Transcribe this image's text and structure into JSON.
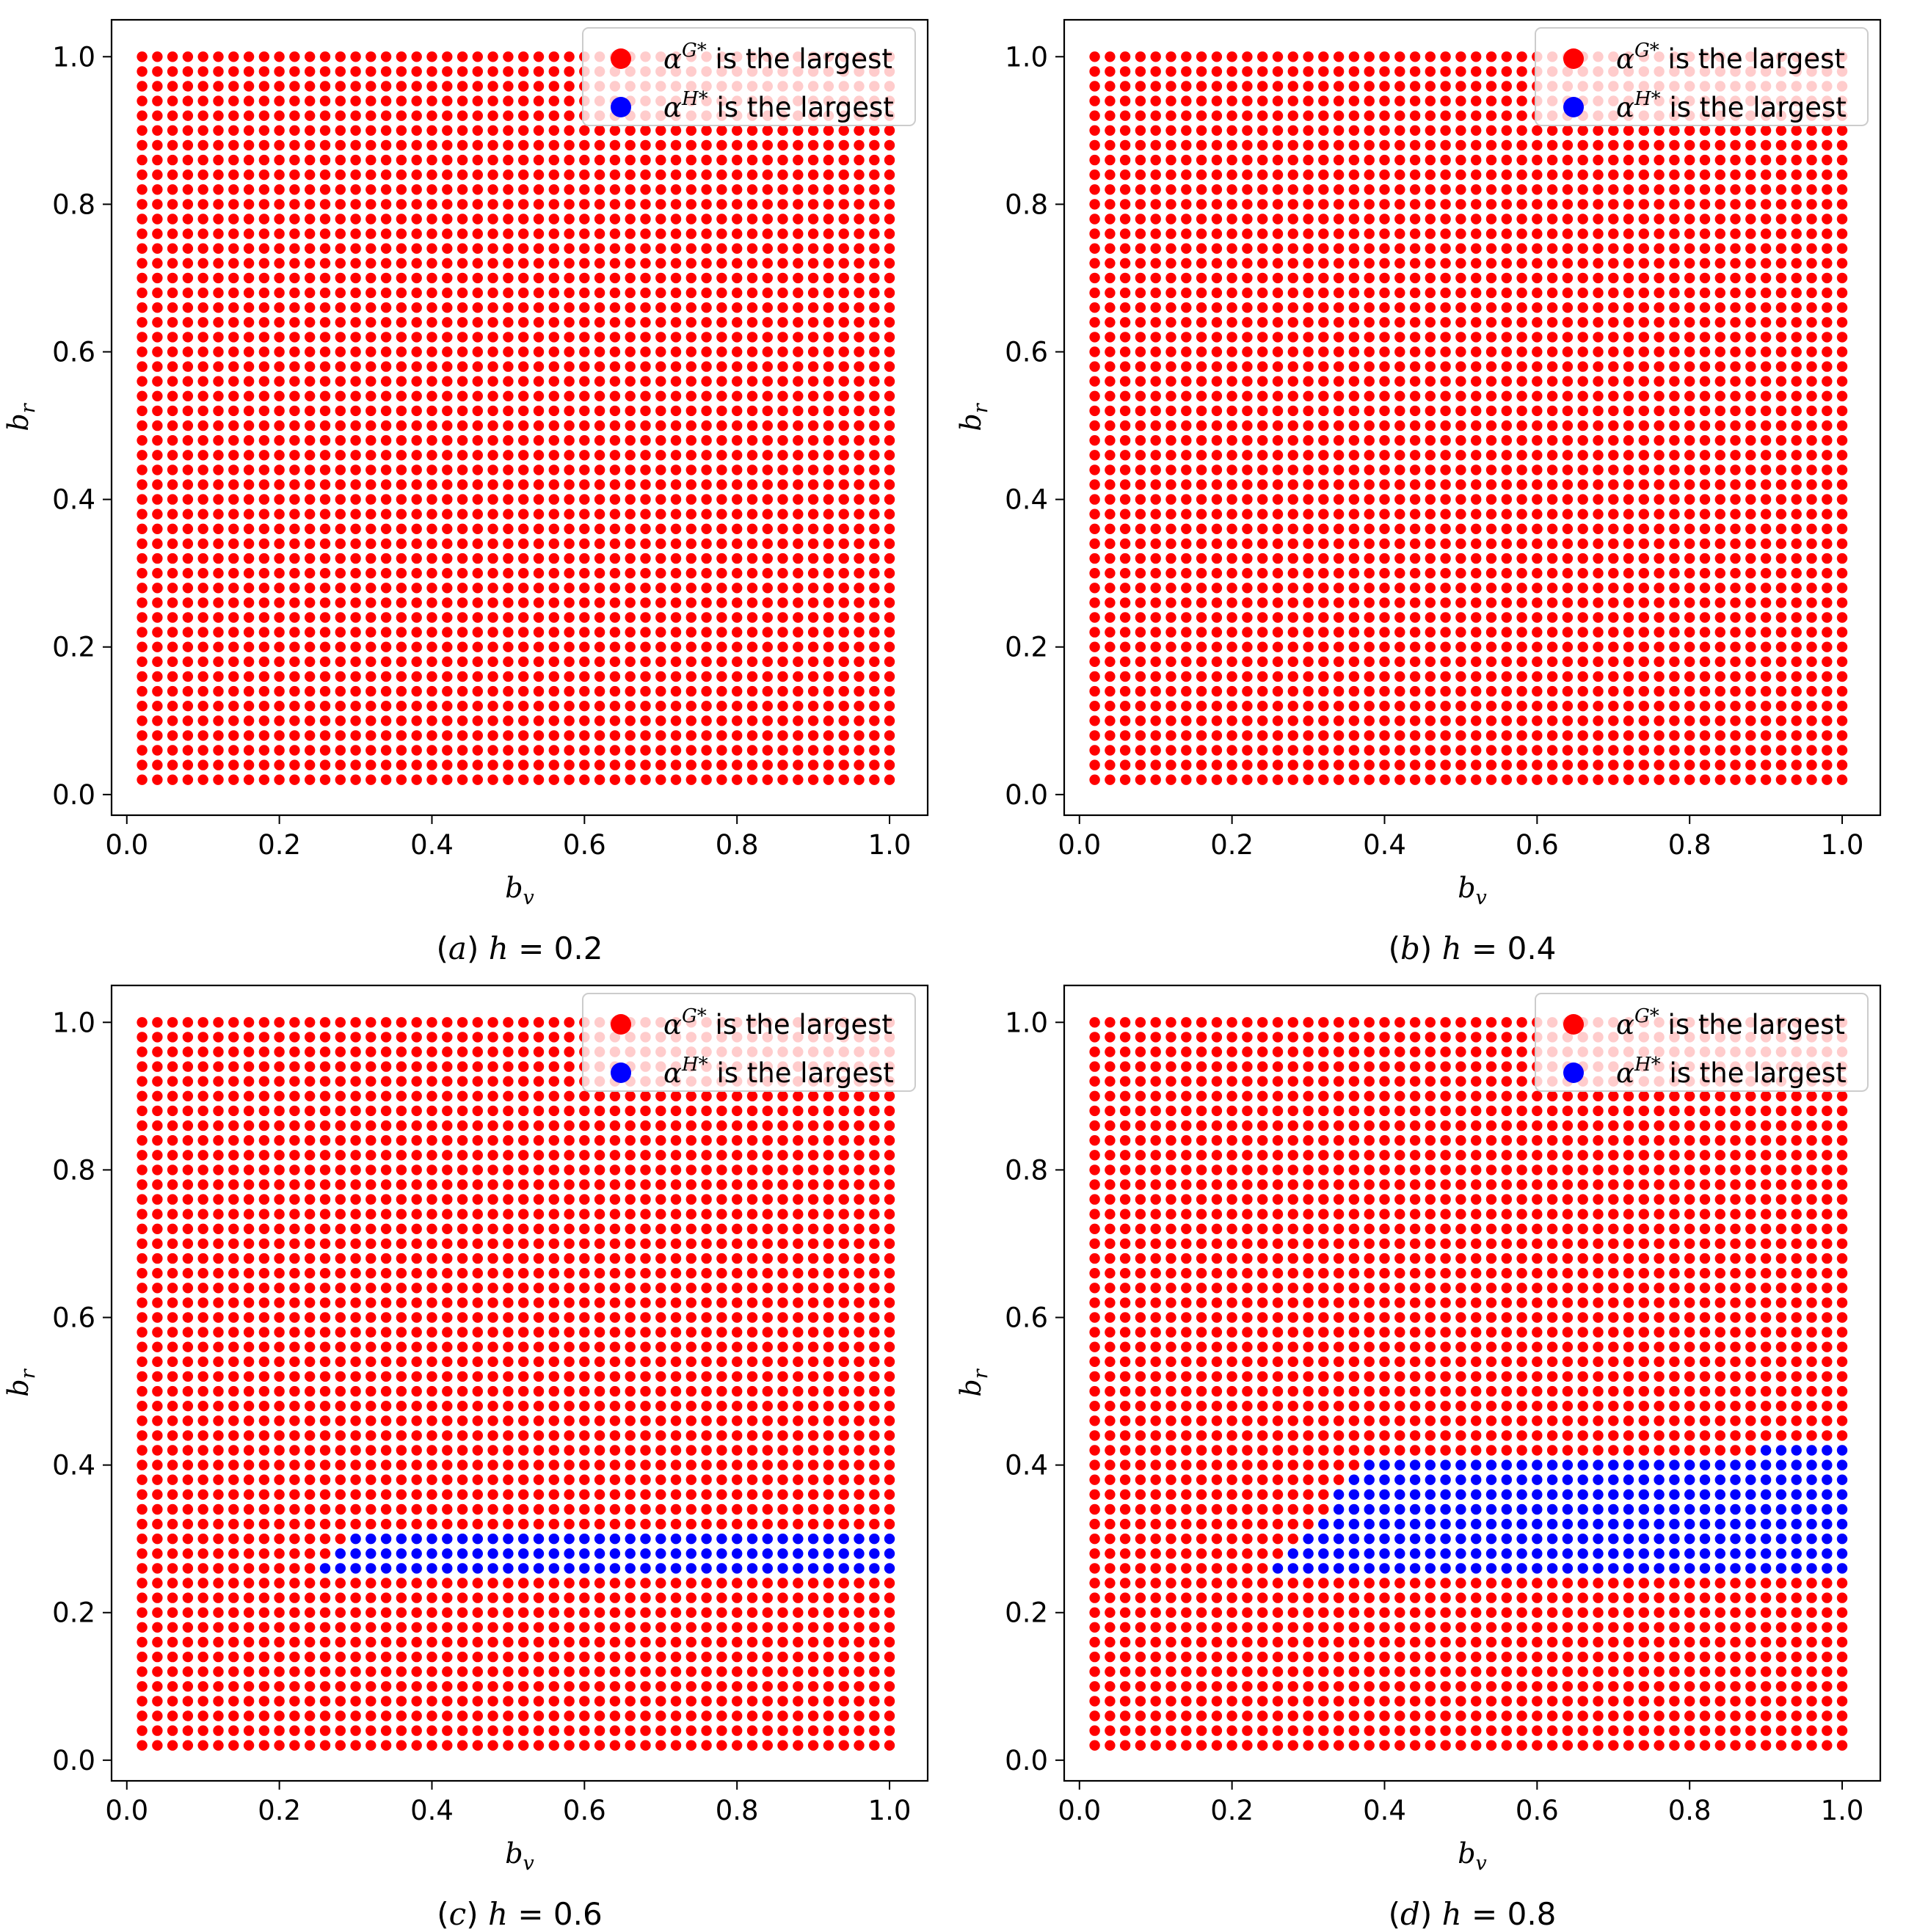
{
  "chart_data": [
    {
      "type": "scatter",
      "panel": "a",
      "caption": {
        "label": "(a)",
        "param": "h",
        "value": "0.2"
      },
      "xlabel": "b_v",
      "ylabel": "b_r",
      "xlim": [
        -0.02,
        1.05
      ],
      "ylim": [
        -0.028,
        1.05
      ],
      "xticks": [
        "0.0",
        "0.2",
        "0.4",
        "0.6",
        "0.8",
        "1.0"
      ],
      "yticks": [
        "0.0",
        "0.2",
        "0.4",
        "0.6",
        "0.8",
        "1.0"
      ],
      "grid_step": 0.02,
      "legend_location": "top-right",
      "series": [
        {
          "name": "α^G* is the largest",
          "color": "#ff0000",
          "region": "all grid points except blue region"
        },
        {
          "name": "α^H* is the largest",
          "color": "#0000ff",
          "region": []
        }
      ]
    },
    {
      "type": "scatter",
      "panel": "b",
      "caption": {
        "label": "(b)",
        "param": "h",
        "value": "0.4"
      },
      "xlabel": "b_v",
      "ylabel": "b_r",
      "xlim": [
        -0.02,
        1.05
      ],
      "ylim": [
        -0.028,
        1.05
      ],
      "xticks": [
        "0.0",
        "0.2",
        "0.4",
        "0.6",
        "0.8",
        "1.0"
      ],
      "yticks": [
        "0.0",
        "0.2",
        "0.4",
        "0.6",
        "0.8",
        "1.0"
      ],
      "grid_step": 0.02,
      "legend_location": "top-right",
      "series": [
        {
          "name": "α^G* is the largest",
          "color": "#ff0000",
          "region": "all grid points except blue region"
        },
        {
          "name": "α^H* is the largest",
          "color": "#0000ff",
          "region": []
        }
      ]
    },
    {
      "type": "scatter",
      "panel": "c",
      "caption": {
        "label": "(c)",
        "param": "h",
        "value": "0.6"
      },
      "xlabel": "b_v",
      "ylabel": "b_r",
      "xlim": [
        -0.02,
        1.05
      ],
      "ylim": [
        -0.028,
        1.05
      ],
      "xticks": [
        "0.0",
        "0.2",
        "0.4",
        "0.6",
        "0.8",
        "1.0"
      ],
      "yticks": [
        "0.0",
        "0.2",
        "0.4",
        "0.6",
        "0.8",
        "1.0"
      ],
      "grid_step": 0.02,
      "legend_location": "top-right",
      "series": [
        {
          "name": "α^G* is the largest",
          "color": "#ff0000",
          "region": "all grid points except blue region"
        },
        {
          "name": "α^H* is the largest",
          "color": "#0000ff",
          "region": [
            {
              "br": 0.26,
              "bv_min": 0.26,
              "bv_max": 1.0
            },
            {
              "br": 0.28,
              "bv_min": 0.28,
              "bv_max": 1.0
            },
            {
              "br": 0.3,
              "bv_min": 0.3,
              "bv_max": 1.0
            }
          ]
        }
      ]
    },
    {
      "type": "scatter",
      "panel": "d",
      "caption": {
        "label": "(d)",
        "param": "h",
        "value": "0.8"
      },
      "xlabel": "b_v",
      "ylabel": "b_r",
      "xlim": [
        -0.02,
        1.05
      ],
      "ylim": [
        -0.028,
        1.05
      ],
      "xticks": [
        "0.0",
        "0.2",
        "0.4",
        "0.6",
        "0.8",
        "1.0"
      ],
      "yticks": [
        "0.0",
        "0.2",
        "0.4",
        "0.6",
        "0.8",
        "1.0"
      ],
      "grid_step": 0.02,
      "legend_location": "top-right",
      "series": [
        {
          "name": "α^G* is the largest",
          "color": "#ff0000",
          "region": "all grid points except blue region"
        },
        {
          "name": "α^H* is the largest",
          "color": "#0000ff",
          "region": [
            {
              "br": 0.26,
              "bv_min": 0.26,
              "bv_max": 1.0
            },
            {
              "br": 0.28,
              "bv_min": 0.28,
              "bv_max": 1.0
            },
            {
              "br": 0.3,
              "bv_min": 0.3,
              "bv_max": 1.0
            },
            {
              "br": 0.32,
              "bv_min": 0.32,
              "bv_max": 1.0
            },
            {
              "br": 0.34,
              "bv_min": 0.34,
              "bv_max": 1.0
            },
            {
              "br": 0.36,
              "bv_min": 0.34,
              "bv_max": 1.0
            },
            {
              "br": 0.38,
              "bv_min": 0.36,
              "bv_max": 1.0
            },
            {
              "br": 0.4,
              "bv_min": 0.38,
              "bv_max": 1.0
            },
            {
              "br": 0.42,
              "bv_min": 0.9,
              "bv_max": 1.0
            }
          ]
        }
      ]
    }
  ],
  "legend": {
    "g_label": "is the largest",
    "g_symbol": "α",
    "g_sup": "G*",
    "h_label": "is the largest",
    "h_symbol": "α",
    "h_sup": "H*"
  },
  "axis_text": {
    "x_main": "b",
    "x_sub": "v",
    "y_main": "b",
    "y_sub": "r",
    "caption_eq": "="
  }
}
